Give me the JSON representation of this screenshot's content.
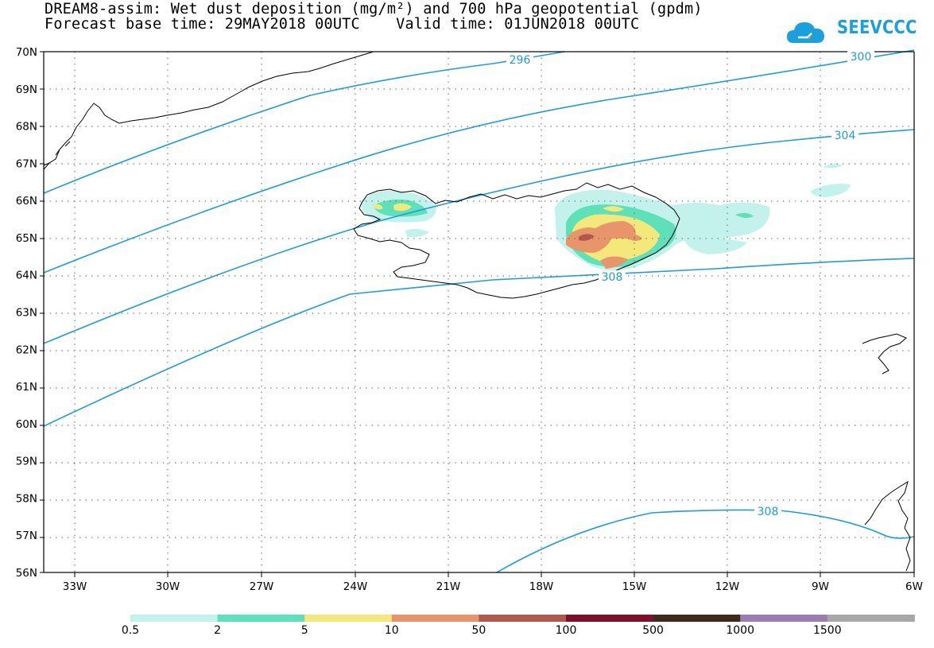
{
  "title_line1": "DREAM8-assim: Wet dust deposition (mg/m²) and 700 hPa geopotential (gpdm)",
  "title_line2": "Forecast base time: 29MAY2018 00UTC    Valid time: 01JUN2018 00UTC",
  "logo_text": "SEEVCCC",
  "lat_labels": [
    "70N",
    "69N",
    "68N",
    "67N",
    "66N",
    "65N",
    "64N",
    "63N",
    "62N",
    "61N",
    "60N",
    "59N",
    "58N",
    "57N",
    "56N"
  ],
  "lon_labels": [
    "33W",
    "30W",
    "27W",
    "24W",
    "21W",
    "18W",
    "15W",
    "12W",
    "9W",
    "6W"
  ],
  "contour_labels": [
    "296",
    "300",
    "304",
    "308",
    "308"
  ],
  "legend": {
    "labels": [
      "0.5",
      "2",
      "5",
      "10",
      "50",
      "100",
      "500",
      "1000",
      "1500"
    ],
    "colors": [
      "#c3f2ec",
      "#5ee0b9",
      "#f5e87a",
      "#e9956b",
      "#b0584b",
      "#7e0f2c",
      "#3e2a1c",
      "#9a7db3",
      "#a8a8a8"
    ]
  },
  "colors": {
    "contour": "#1e9be0",
    "coast": "#000000",
    "grid": "#555555",
    "logo": "#1aa0dc"
  }
}
